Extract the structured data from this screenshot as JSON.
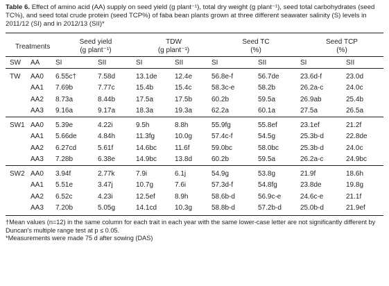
{
  "caption": {
    "label": "Table 6.",
    "text": "Effect of amino acid (AA) supply on seed yield (g plant⁻¹), total dry weight (g plant⁻¹), seed total carbohydrates (seed TC%), and seed total crude protein (seed TCP%) of faba bean plants grown at three different seawater salinity (S) levels in 2011/12 (SI) and in 2012/13 (SII)*"
  },
  "header": {
    "treatments": "Treatments",
    "seed_yield": "Seed yield",
    "seed_yield_unit": "(g plant⁻¹)",
    "tdw": "TDW",
    "tdw_unit": "(g plant⁻¹)",
    "seed_tc": "Seed TC",
    "seed_tc_unit": "(%)",
    "seed_tcp": "Seed TCP",
    "seed_tcp_unit": "(%)",
    "sub": [
      "SW",
      "AA",
      "SI",
      "SII",
      "SI",
      "SII",
      "SI",
      "SII",
      "SI",
      "SII"
    ]
  },
  "rows": [
    [
      "TW",
      "AA0",
      "6.55c†",
      "7.58d",
      "13.1de",
      "12.4e",
      "56.8e-f",
      "56.7de",
      "23.6d-f",
      "23.0d"
    ],
    [
      "",
      "AA1",
      "7.69b",
      "7.77c",
      "15.4b",
      "15.4c",
      "58.3c-e",
      "58.2b",
      "26.2a-c",
      "24.0c"
    ],
    [
      "",
      "AA2",
      "8.73a",
      "8.44b",
      "17.5a",
      "17.5b",
      "60.2b",
      "59.5a",
      "26.9ab",
      "25.4b"
    ],
    [
      "",
      "AA3",
      "9.16a",
      "9.17a",
      "18.3a",
      "19.3a",
      "62.2a",
      "60.1a",
      "27.5a",
      "26.5a"
    ],
    [
      "SW1",
      "AA0",
      "5.39e",
      "4.22i",
      "9.5h",
      "8.8h",
      "55.9fg",
      "55.8ef",
      "23.1ef",
      "21.2f"
    ],
    [
      "",
      "AA1",
      "5.66de",
      "4.84h",
      "11.3fg",
      "10.0g",
      "57.4c-f",
      "54.5g",
      "25.3b-d",
      "22.8de"
    ],
    [
      "",
      "AA2",
      "6.27cd",
      "5.61f",
      "14.6bc",
      "11.6f",
      "59.0bc",
      "58.0bc",
      "25.3b-d",
      "24.0c"
    ],
    [
      "",
      "AA3",
      "7.28b",
      "6.38e",
      "14.9bc",
      "13.8d",
      "60.2b",
      "59.5a",
      "26.2a-c",
      "24.9bc"
    ],
    [
      "SW2",
      "AA0",
      "3.94f",
      "2.77k",
      "7.9i",
      "6.1j",
      "54.9g",
      "53.8g",
      "21.9f",
      "18.6h"
    ],
    [
      "",
      "AA1",
      "5.51e",
      "3.47j",
      "10.7g",
      "7.6i",
      "57.3d-f",
      "54.8fg",
      "23.8de",
      "19.8g"
    ],
    [
      "",
      "AA2",
      "6.52c",
      "4.23i",
      "12.5ef",
      "8.9h",
      "58.6b-d",
      "56.9c-e",
      "24.6c-e",
      "21.1f"
    ],
    [
      "",
      "AA3",
      "7.20b",
      "5.05g",
      "14.1cd",
      "10.3g",
      "58.8b-d",
      "57.2b-d",
      "25.0b-d",
      "21.9ef"
    ]
  ],
  "footnotes": {
    "dagger": "†Mean values (n=12) in the same column for each trait in each year with the same lower-case letter are not significantly different by Duncan's multiple range test at p ≤ 0.05.",
    "star": "*Measurements were made 75 d after sowing (DAS)"
  }
}
